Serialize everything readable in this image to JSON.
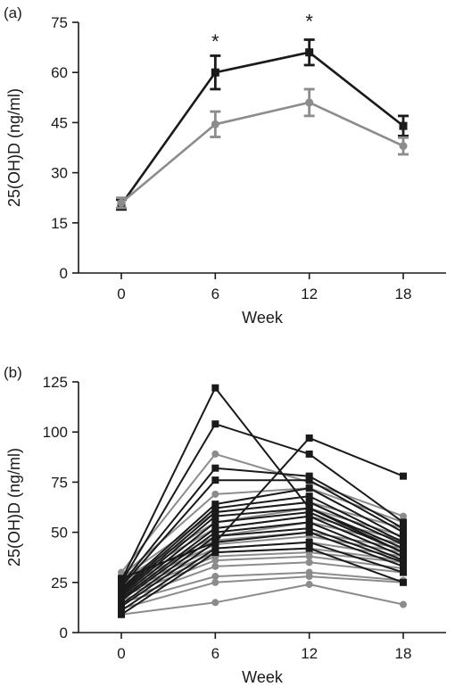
{
  "chart_data": [
    {
      "type": "line",
      "panel_label": "(a)",
      "xlabel": "Week",
      "ylabel": "25(OH)D (ng/ml)",
      "x": [
        0,
        6,
        12,
        18
      ],
      "x_tick_labels": [
        "0",
        "6",
        "12",
        "18"
      ],
      "ylim": [
        0,
        75
      ],
      "y_ticks": [
        0,
        15,
        30,
        45,
        60,
        75
      ],
      "y_tick_labels": [
        "0",
        "15",
        "30",
        "45",
        "60",
        "75"
      ],
      "series": [
        {
          "color": "#1a1a1a",
          "marker": "square",
          "values": [
            20.5,
            60,
            66,
            44
          ],
          "errors": [
            1.5,
            5,
            3.8,
            3
          ]
        },
        {
          "color": "#8c8c8c",
          "marker": "circle",
          "values": [
            21,
            44.5,
            51,
            38
          ],
          "errors": [
            1.5,
            3.8,
            4,
            2.5
          ]
        }
      ],
      "annotations": [
        {
          "text": "*",
          "x": 6,
          "y": 71
        },
        {
          "text": "*",
          "x": 12,
          "y": 77
        }
      ],
      "grid": false
    },
    {
      "type": "line",
      "panel_label": "(b)",
      "xlabel": "Week",
      "ylabel": "25(OH)D (ng/ml)",
      "x": [
        0,
        6,
        12,
        18
      ],
      "x_tick_labels": [
        "0",
        "6",
        "12",
        "18"
      ],
      "ylim": [
        0,
        125
      ],
      "y_ticks": [
        0,
        25,
        50,
        75,
        100,
        125
      ],
      "y_tick_labels": [
        "0",
        "25",
        "50",
        "75",
        "100",
        "125"
      ],
      "grid": false,
      "series": [
        {
          "color": "#8c8c8c",
          "marker": "circle",
          "values": [
            9,
            15,
            24,
            14
          ]
        },
        {
          "color": "#8c8c8c",
          "marker": "circle",
          "values": [
            12,
            25,
            28,
            25
          ]
        },
        {
          "color": "#8c8c8c",
          "marker": "circle",
          "values": [
            15,
            28,
            30,
            26
          ]
        },
        {
          "color": "#8c8c8c",
          "marker": "circle",
          "values": [
            16,
            33,
            35,
            30
          ]
        },
        {
          "color": "#8c8c8c",
          "marker": "circle",
          "values": [
            18,
            36,
            38,
            32
          ]
        },
        {
          "color": "#8c8c8c",
          "marker": "circle",
          "values": [
            19,
            38,
            40,
            35
          ]
        },
        {
          "color": "#8c8c8c",
          "marker": "circle",
          "values": [
            20,
            40,
            42,
            36
          ]
        },
        {
          "color": "#8c8c8c",
          "marker": "circle",
          "values": [
            21,
            42,
            45,
            38
          ]
        },
        {
          "color": "#8c8c8c",
          "marker": "circle",
          "values": [
            22,
            44,
            48,
            40
          ]
        },
        {
          "color": "#8c8c8c",
          "marker": "circle",
          "values": [
            23,
            46,
            50,
            42
          ]
        },
        {
          "color": "#8c8c8c",
          "marker": "circle",
          "values": [
            24,
            48,
            55,
            44
          ]
        },
        {
          "color": "#8c8c8c",
          "marker": "circle",
          "values": [
            25,
            52,
            58,
            46
          ]
        },
        {
          "color": "#8c8c8c",
          "marker": "circle",
          "values": [
            26,
            55,
            62,
            48
          ]
        },
        {
          "color": "#8c8c8c",
          "marker": "circle",
          "values": [
            27,
            60,
            65,
            52
          ]
        },
        {
          "color": "#8c8c8c",
          "marker": "circle",
          "values": [
            28,
            69,
            72,
            55
          ]
        },
        {
          "color": "#8c8c8c",
          "marker": "circle",
          "values": [
            30,
            89,
            75,
            58
          ]
        },
        {
          "color": "#1a1a1a",
          "marker": "square",
          "values": [
            9,
            40,
            42,
            25
          ]
        },
        {
          "color": "#1a1a1a",
          "marker": "square",
          "values": [
            11,
            42,
            45,
            30
          ]
        },
        {
          "color": "#1a1a1a",
          "marker": "square",
          "values": [
            13,
            45,
            50,
            33
          ]
        },
        {
          "color": "#1a1a1a",
          "marker": "square",
          "values": [
            14,
            48,
            52,
            35
          ]
        },
        {
          "color": "#1a1a1a",
          "marker": "square",
          "values": [
            16,
            50,
            55,
            36
          ]
        },
        {
          "color": "#1a1a1a",
          "marker": "square",
          "values": [
            17,
            52,
            58,
            38
          ]
        },
        {
          "color": "#1a1a1a",
          "marker": "square",
          "values": [
            18,
            55,
            60,
            40
          ]
        },
        {
          "color": "#1a1a1a",
          "marker": "square",
          "values": [
            19,
            58,
            62,
            42
          ]
        },
        {
          "color": "#1a1a1a",
          "marker": "square",
          "values": [
            20,
            60,
            65,
            44
          ]
        },
        {
          "color": "#1a1a1a",
          "marker": "square",
          "values": [
            21,
            62,
            68,
            45
          ]
        },
        {
          "color": "#1a1a1a",
          "marker": "square",
          "values": [
            22,
            64,
            72,
            47
          ]
        },
        {
          "color": "#1a1a1a",
          "marker": "square",
          "values": [
            23,
            76,
            76,
            50
          ]
        },
        {
          "color": "#1a1a1a",
          "marker": "square",
          "values": [
            24,
            82,
            78,
            52
          ]
        },
        {
          "color": "#1a1a1a",
          "marker": "square",
          "values": [
            25,
            104,
            89,
            55
          ]
        },
        {
          "color": "#1a1a1a",
          "marker": "square",
          "values": [
            26,
            122,
            62,
            40
          ]
        },
        {
          "color": "#1a1a1a",
          "marker": "square",
          "values": [
            27,
            45,
            97,
            78
          ]
        }
      ]
    }
  ]
}
